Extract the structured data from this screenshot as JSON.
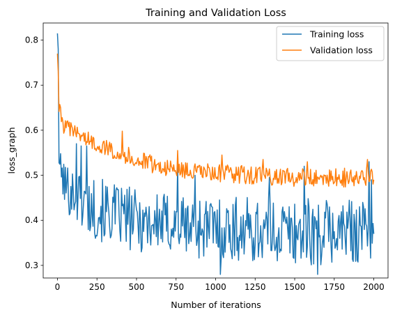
{
  "chart_data": {
    "type": "line",
    "title": "Training and Validation Loss",
    "xlabel": "Number of iterations",
    "ylabel": "loss_graph",
    "xlim": [
      -90,
      2090
    ],
    "ylim": [
      0.272,
      0.838
    ],
    "x_ticks": [
      0,
      250,
      500,
      750,
      1000,
      1250,
      1500,
      1750,
      2000
    ],
    "y_ticks": [
      0.3,
      0.4,
      0.5,
      0.6,
      0.7,
      0.8
    ],
    "grid": false,
    "legend_position": "top-right",
    "x_step": 5,
    "series": [
      {
        "name": "Training loss",
        "color": "#1f77b4",
        "x_range": [
          0,
          2000
        ],
        "upper_envelope": [
          [
            0,
            0.815
          ],
          [
            5,
            0.73
          ],
          [
            10,
            0.6
          ],
          [
            20,
            0.55
          ],
          [
            50,
            0.53
          ],
          [
            100,
            0.52
          ],
          [
            150,
            0.51
          ],
          [
            200,
            0.5
          ],
          [
            300,
            0.49
          ],
          [
            500,
            0.47
          ],
          [
            750,
            0.46
          ],
          [
            1000,
            0.455
          ],
          [
            1250,
            0.45
          ],
          [
            1500,
            0.45
          ],
          [
            1750,
            0.45
          ],
          [
            2000,
            0.45
          ]
        ],
        "lower_envelope": [
          [
            0,
            0.7
          ],
          [
            5,
            0.6
          ],
          [
            10,
            0.5
          ],
          [
            20,
            0.47
          ],
          [
            50,
            0.42
          ],
          [
            100,
            0.4
          ],
          [
            150,
            0.38
          ],
          [
            200,
            0.36
          ],
          [
            300,
            0.35
          ],
          [
            400,
            0.34
          ],
          [
            500,
            0.33
          ],
          [
            750,
            0.32
          ],
          [
            1000,
            0.31
          ],
          [
            1250,
            0.305
          ],
          [
            1500,
            0.3
          ],
          [
            1750,
            0.3
          ],
          [
            2000,
            0.31
          ]
        ],
        "spikes": [
          [
            0,
            0.815
          ],
          [
            5,
            0.78
          ],
          [
            120,
            0.57
          ],
          [
            150,
            0.565
          ],
          [
            185,
            0.565
          ],
          [
            760,
            0.525
          ],
          [
            870,
            0.5
          ],
          [
            1030,
            0.28
          ],
          [
            1340,
            0.495
          ],
          [
            1560,
            0.52
          ],
          [
            1645,
            0.28
          ],
          [
            1970,
            0.53
          ],
          [
            1985,
            0.49
          ],
          [
            2000,
            0.37
          ]
        ]
      },
      {
        "name": "Validation loss",
        "color": "#ff7f0e",
        "x_range": [
          0,
          2000
        ],
        "upper_envelope": [
          [
            0,
            0.77
          ],
          [
            5,
            0.75
          ],
          [
            10,
            0.68
          ],
          [
            20,
            0.64
          ],
          [
            50,
            0.625
          ],
          [
            100,
            0.615
          ],
          [
            150,
            0.605
          ],
          [
            200,
            0.595
          ],
          [
            300,
            0.58
          ],
          [
            400,
            0.57
          ],
          [
            500,
            0.555
          ],
          [
            600,
            0.545
          ],
          [
            750,
            0.53
          ],
          [
            1000,
            0.525
          ],
          [
            1250,
            0.52
          ],
          [
            1500,
            0.515
          ],
          [
            1750,
            0.515
          ],
          [
            2000,
            0.52
          ]
        ],
        "lower_envelope": [
          [
            0,
            0.7
          ],
          [
            5,
            0.7
          ],
          [
            10,
            0.64
          ],
          [
            20,
            0.6
          ],
          [
            50,
            0.59
          ],
          [
            100,
            0.58
          ],
          [
            150,
            0.575
          ],
          [
            200,
            0.56
          ],
          [
            300,
            0.545
          ],
          [
            400,
            0.53
          ],
          [
            500,
            0.515
          ],
          [
            600,
            0.505
          ],
          [
            750,
            0.495
          ],
          [
            1000,
            0.485
          ],
          [
            1250,
            0.48
          ],
          [
            1500,
            0.475
          ],
          [
            1750,
            0.475
          ],
          [
            2000,
            0.47
          ]
        ],
        "spikes": [
          [
            0,
            0.77
          ],
          [
            20,
            0.65
          ],
          [
            110,
            0.61
          ],
          [
            410,
            0.598
          ],
          [
            760,
            0.555
          ],
          [
            1040,
            0.545
          ],
          [
            1300,
            0.535
          ],
          [
            1580,
            0.53
          ],
          [
            1960,
            0.535
          ],
          [
            2000,
            0.49
          ]
        ]
      }
    ]
  }
}
